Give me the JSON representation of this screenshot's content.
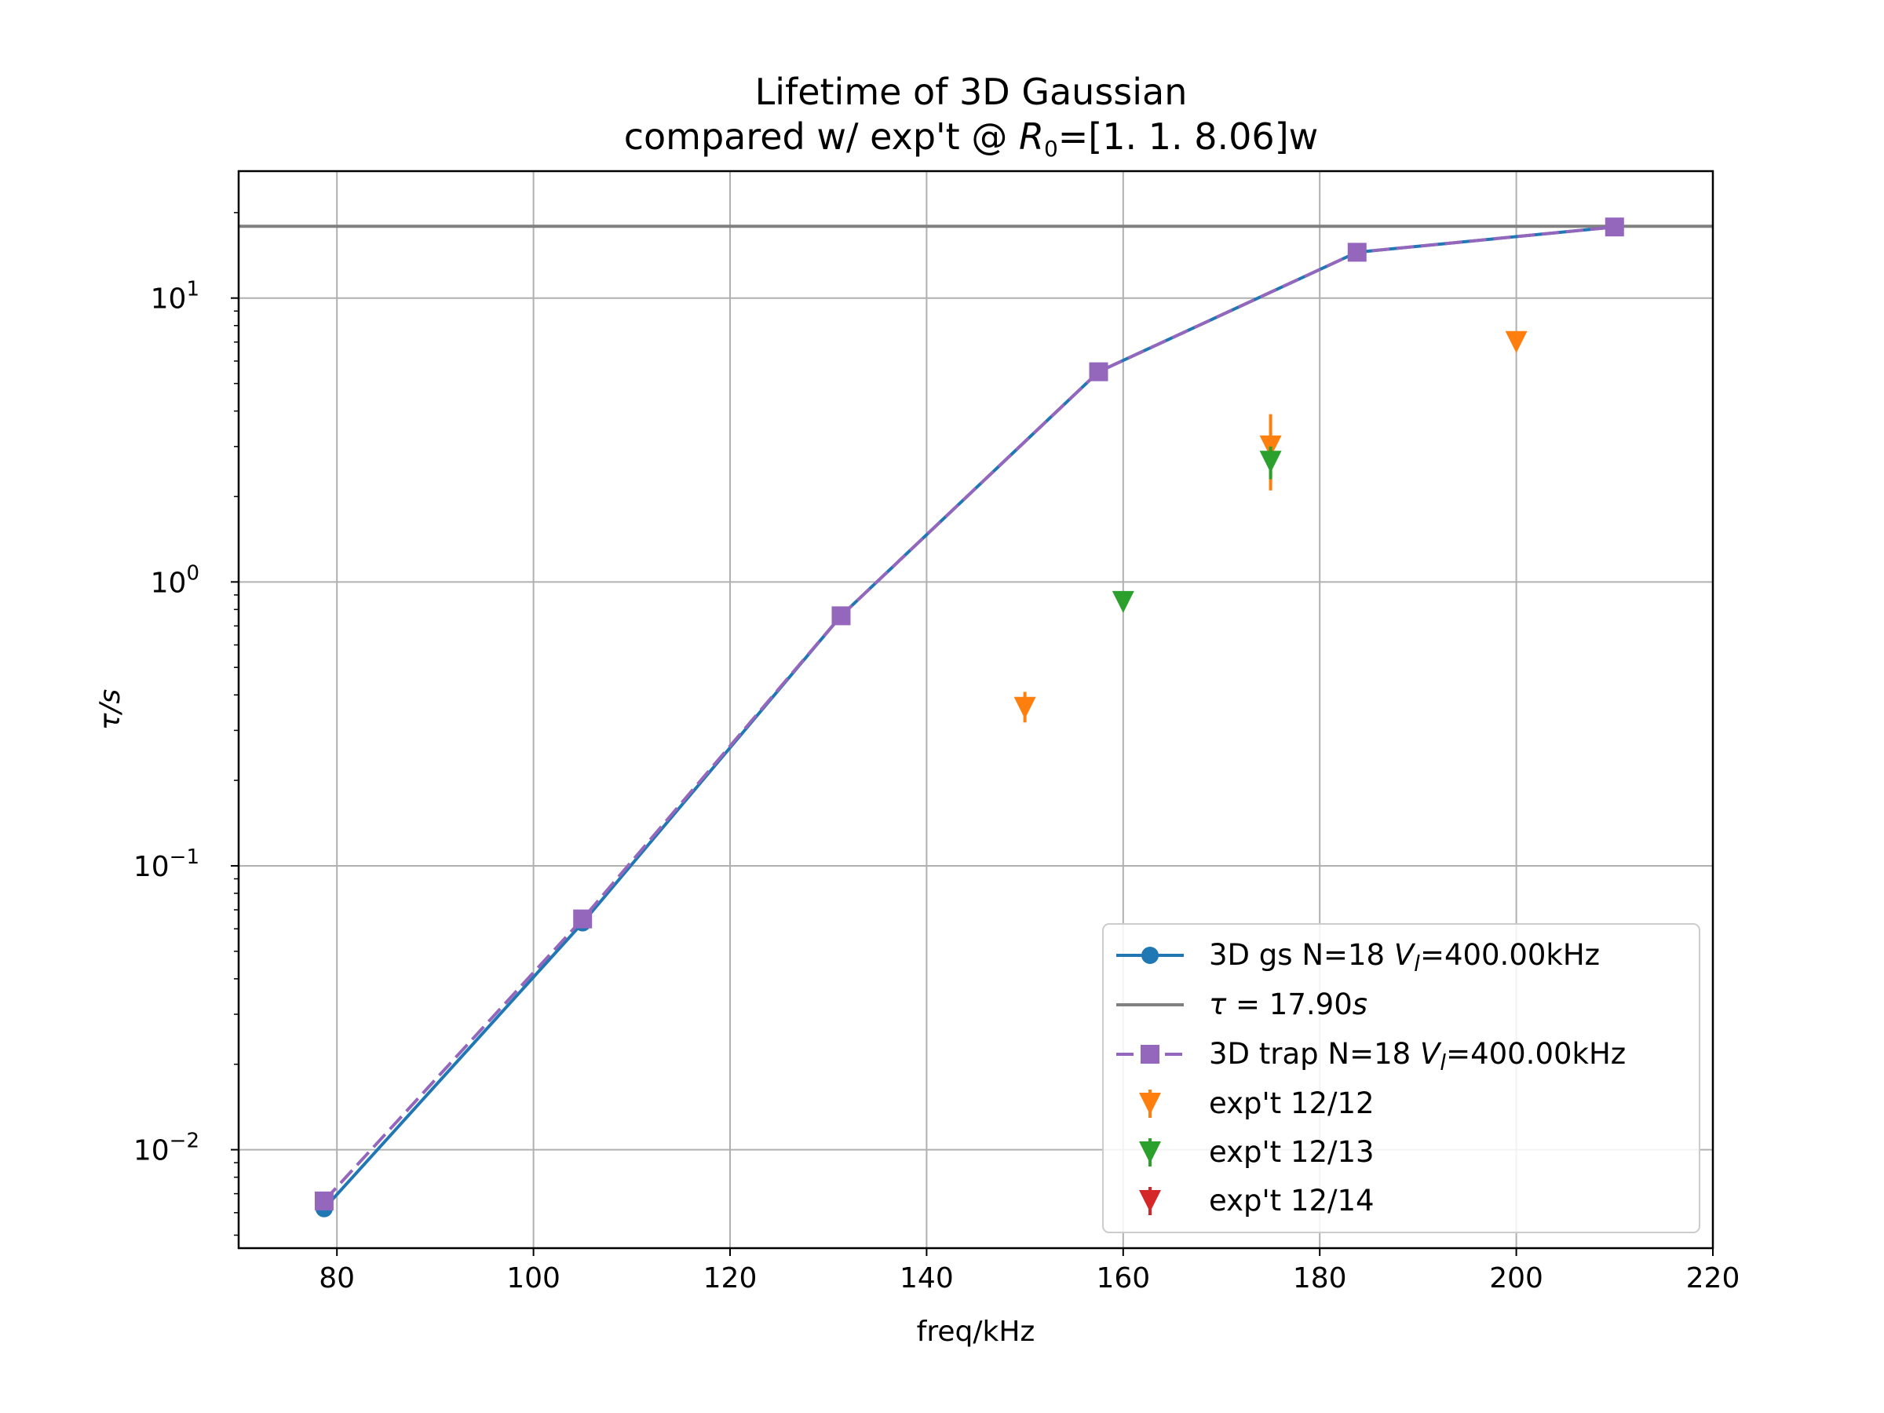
{
  "chart_data": {
    "type": "line",
    "title": {
      "line1": "Lifetime of 3D Gaussian",
      "line2_prefix": "compared w/ exp't @ ",
      "line2_var": "R",
      "line2_sub": "0",
      "line2_suffix": "=[1.   1.   8.06]w"
    },
    "xlabel": "freq/kHz",
    "ylabel": "τ/s",
    "x_range": [
      70,
      220
    ],
    "y_range": [
      0.0045,
      28
    ],
    "y_scale": "log",
    "grid": true,
    "legend_position": "lower right",
    "x_ticks": [
      {
        "value": 80,
        "label": "80"
      },
      {
        "value": 100,
        "label": "100"
      },
      {
        "value": 120,
        "label": "120"
      },
      {
        "value": 140,
        "label": "140"
      },
      {
        "value": 160,
        "label": "160"
      },
      {
        "value": 180,
        "label": "180"
      },
      {
        "value": 200,
        "label": "200"
      },
      {
        "value": 220,
        "label": "220"
      }
    ],
    "y_ticks": [
      {
        "value": 0.01,
        "base": "10",
        "exp": "−2"
      },
      {
        "value": 0.1,
        "base": "10",
        "exp": "−1"
      },
      {
        "value": 1,
        "base": "10",
        "exp": "0"
      },
      {
        "value": 10,
        "base": "10",
        "exp": "1"
      }
    ],
    "hline": {
      "y": 17.9,
      "color": "#808080",
      "legend": {
        "prefix": "τ",
        "suffix": " = 17.90",
        "unit": "s"
      }
    },
    "series": [
      {
        "key": "gs",
        "color": "#1f77b4",
        "marker": "circle",
        "linestyle": "solid",
        "legend": {
          "prefix": "3D gs N=18 ",
          "var": "V",
          "sub": "l",
          "suffix": "=400.00kHz"
        },
        "points": [
          {
            "x": 78.7,
            "y": 0.0062
          },
          {
            "x": 105.0,
            "y": 0.063
          },
          {
            "x": 131.3,
            "y": 0.76
          },
          {
            "x": 157.5,
            "y": 5.5
          },
          {
            "x": 183.8,
            "y": 14.5
          },
          {
            "x": 210.0,
            "y": 17.8
          }
        ]
      },
      {
        "key": "trap",
        "color": "#9467bd",
        "marker": "square",
        "linestyle": "dashed",
        "legend": {
          "prefix": "3D trap N=18 ",
          "var": "V",
          "sub": "l",
          "suffix": "=400.00kHz"
        },
        "points": [
          {
            "x": 78.7,
            "y": 0.0066
          },
          {
            "x": 105.0,
            "y": 0.065
          },
          {
            "x": 131.3,
            "y": 0.76
          },
          {
            "x": 157.5,
            "y": 5.5
          },
          {
            "x": 183.8,
            "y": 14.5
          },
          {
            "x": 210.0,
            "y": 17.8
          }
        ]
      }
    ],
    "experiments": [
      {
        "key": "e1212",
        "color": "#ff7f0e",
        "label": "exp't 12/12",
        "points": [
          {
            "x": 150,
            "y": 0.36,
            "ylo": 0.32,
            "yhi": 0.41
          },
          {
            "x": 175,
            "y": 3.0,
            "ylo": 2.1,
            "yhi": 3.9
          },
          {
            "x": 200,
            "y": 7.0,
            "ylo": 6.6,
            "yhi": 7.4
          }
        ]
      },
      {
        "key": "e1213",
        "color": "#2ca02c",
        "label": "exp't 12/13",
        "points": [
          {
            "x": 160,
            "y": 0.85,
            "ylo": 0.8,
            "yhi": 0.9
          },
          {
            "x": 175,
            "y": 2.65,
            "ylo": 2.3,
            "yhi": 3.0
          }
        ]
      },
      {
        "key": "e1214",
        "color": "#d62728",
        "label": "exp't 12/14",
        "points": []
      }
    ]
  }
}
